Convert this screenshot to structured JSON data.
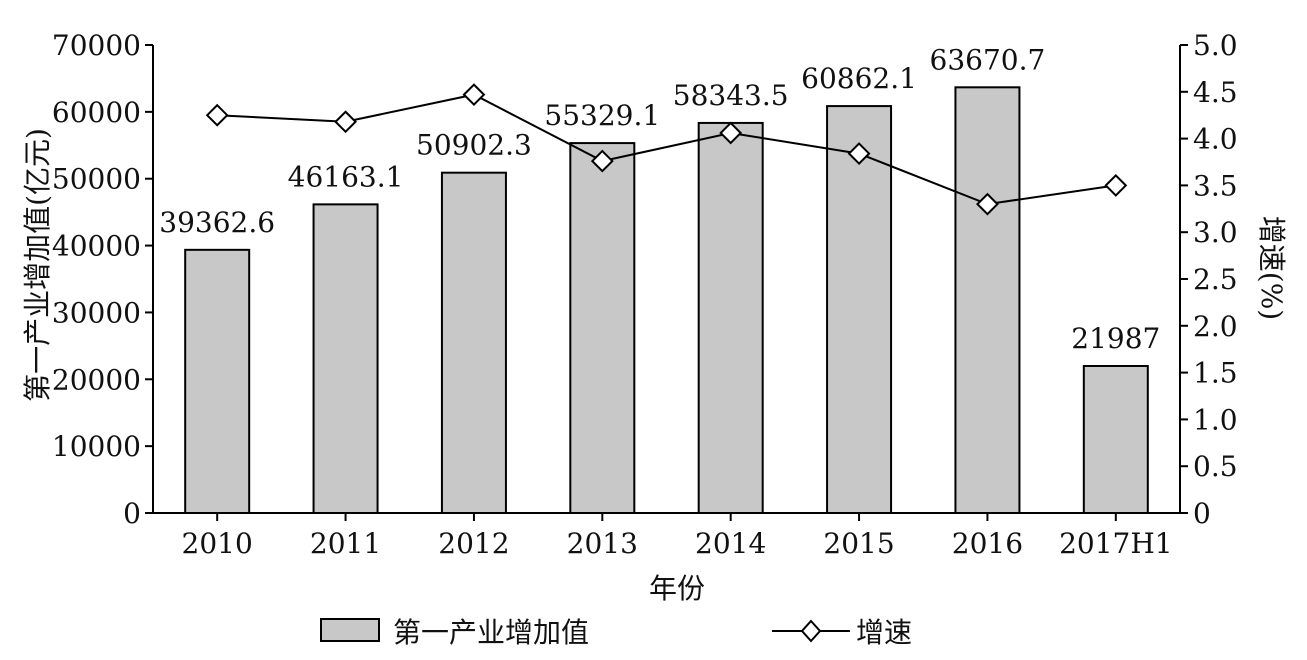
{
  "chart_data": {
    "type": "bar",
    "categories": [
      "2010",
      "2011",
      "2012",
      "2013",
      "2014",
      "2015",
      "2016",
      "2017H1"
    ],
    "series": [
      {
        "name": "第一产业增加值",
        "kind": "bar",
        "axis": "left",
        "values": [
          39362.6,
          46163.1,
          50902.3,
          55329.1,
          58343.5,
          60862.1,
          63670.7,
          21987
        ],
        "labels": [
          "39362.6",
          "46163.1",
          "50902.3",
          "55329.1",
          "58343.5",
          "60862.1",
          "63670.7",
          "21987"
        ],
        "color": "#c8c8c8"
      },
      {
        "name": "增速",
        "kind": "line",
        "axis": "right",
        "values": [
          4.25,
          4.18,
          4.47,
          3.76,
          4.06,
          3.84,
          3.3,
          3.5
        ],
        "color": "#000000",
        "marker": "diamond"
      }
    ],
    "xlabel": "年份",
    "ylabel": "第一产业增加值(亿元)",
    "y2label": "增速(%)",
    "ylim": [
      0,
      70000
    ],
    "y2lim": [
      0,
      5.0
    ],
    "yticks": [
      "0",
      "10000",
      "20000",
      "30000",
      "40000",
      "50000",
      "60000",
      "70000"
    ],
    "y2ticks": [
      "0",
      "0.5",
      "1.0",
      "1.5",
      "2.0",
      "2.5",
      "3.0",
      "3.5",
      "4.0",
      "4.5",
      "5.0"
    ],
    "grid": false,
    "legend_position": "bottom"
  }
}
